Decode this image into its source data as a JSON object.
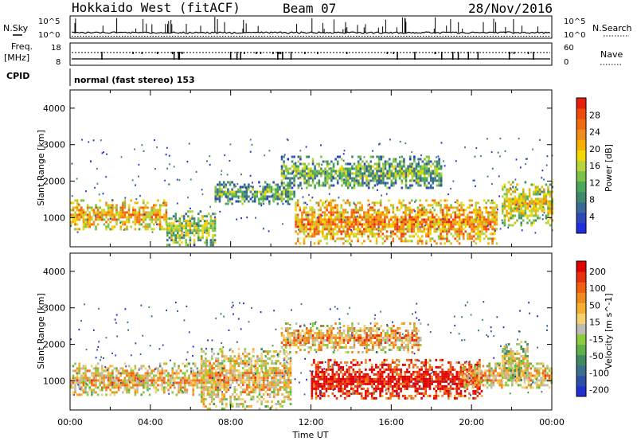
{
  "header": {
    "title": "Hokkaido West (fitACF)",
    "beam": "Beam 07",
    "date": "28/Nov/2016"
  },
  "top_panels": {
    "nsky_label": "N.Sky",
    "nsearch_label": "N.Search",
    "noise_ticks_left": [
      "10^5",
      "10^0"
    ],
    "noise_ticks_right": [
      "10^5",
      "10^0"
    ],
    "freq_label_line1": "Freq.",
    "freq_label_line2": "[MHz]",
    "freq_ticks": [
      "18",
      "8"
    ],
    "nave_label": "Nave",
    "nave_ticks": [
      "60",
      "0"
    ],
    "cpid_label": "CPID",
    "cpid_text": "normal (fast stereo) 153"
  },
  "colors": {
    "power_scale": [
      "#1f2fe0",
      "#2d48b8",
      "#3b6a9a",
      "#3f8a6e",
      "#4aa85a",
      "#7cc24a",
      "#b9d33c",
      "#f0d800",
      "#f5b000",
      "#f08c1c",
      "#f06a10",
      "#ee4a0c",
      "#e62010"
    ],
    "velocity_scale": [
      "#2330d0",
      "#2d4fa8",
      "#3b6f90",
      "#3f8a60",
      "#5fb048",
      "#8ecb3e",
      "#bcbcb0",
      "#f5d070",
      "#f5b030",
      "#f08a20",
      "#f06010",
      "#e83010",
      "#e00000"
    ]
  },
  "chart_data": [
    {
      "type": "heatmap",
      "name": "power",
      "xlabel": "Time UT",
      "ylabel": "Slant Range [km]",
      "x_ticks": [
        "00:00",
        "04:00",
        "08:00",
        "12:00",
        "16:00",
        "20:00",
        "00:00"
      ],
      "y_ticks": [
        "1000",
        "2000",
        "3000",
        "4000"
      ],
      "ylim": [
        200,
        4500
      ],
      "colorbar_label": "Power [dB]",
      "colorbar_ticks": [
        "4",
        "8",
        "12",
        "16",
        "20",
        "24",
        "28"
      ],
      "echo_regions": [
        {
          "t0": 0.0,
          "t1": 4.8,
          "r0": 700,
          "r1": 1500,
          "level": 0.55
        },
        {
          "t0": 4.8,
          "t1": 7.2,
          "r0": 250,
          "r1": 1200,
          "level": 0.35
        },
        {
          "t0": 7.2,
          "t1": 11.2,
          "r0": 1400,
          "r1": 2000,
          "level": 0.25
        },
        {
          "t0": 10.5,
          "t1": 18.5,
          "r0": 1800,
          "r1": 2700,
          "level": 0.25
        },
        {
          "t0": 11.2,
          "t1": 21.3,
          "r0": 300,
          "r1": 1500,
          "level": 0.6
        },
        {
          "t0": 21.5,
          "t1": 24.0,
          "r0": 800,
          "r1": 2000,
          "level": 0.45
        }
      ]
    },
    {
      "type": "heatmap",
      "name": "velocity",
      "xlabel": "Time UT",
      "ylabel": "Slant Range [km]",
      "x_ticks": [
        "00:00",
        "04:00",
        "08:00",
        "12:00",
        "16:00",
        "20:00",
        "00:00"
      ],
      "y_ticks": [
        "1000",
        "2000",
        "3000",
        "4000"
      ],
      "ylim": [
        200,
        4500
      ],
      "colorbar_label": "Velocity [m s^-1]",
      "colorbar_ticks": [
        "200",
        "100",
        "50",
        "15",
        "-15",
        "-50",
        "-100",
        "-200"
      ],
      "echo_regions": [
        {
          "t0": 0.0,
          "t1": 7.5,
          "r0": 600,
          "r1": 1500,
          "level": 0.5
        },
        {
          "t0": 6.5,
          "t1": 11.0,
          "r0": 250,
          "r1": 1900,
          "level": 0.5
        },
        {
          "t0": 10.5,
          "t1": 17.5,
          "r0": 1800,
          "r1": 2600,
          "level": 0.55
        },
        {
          "t0": 12.0,
          "t1": 20.5,
          "r0": 500,
          "r1": 1600,
          "level": 0.85
        },
        {
          "t0": 19.5,
          "t1": 24.0,
          "r0": 800,
          "r1": 1500,
          "level": 0.5
        },
        {
          "t0": 21.5,
          "t1": 22.8,
          "r0": 1000,
          "r1": 2100,
          "level": 0.4
        }
      ]
    }
  ]
}
